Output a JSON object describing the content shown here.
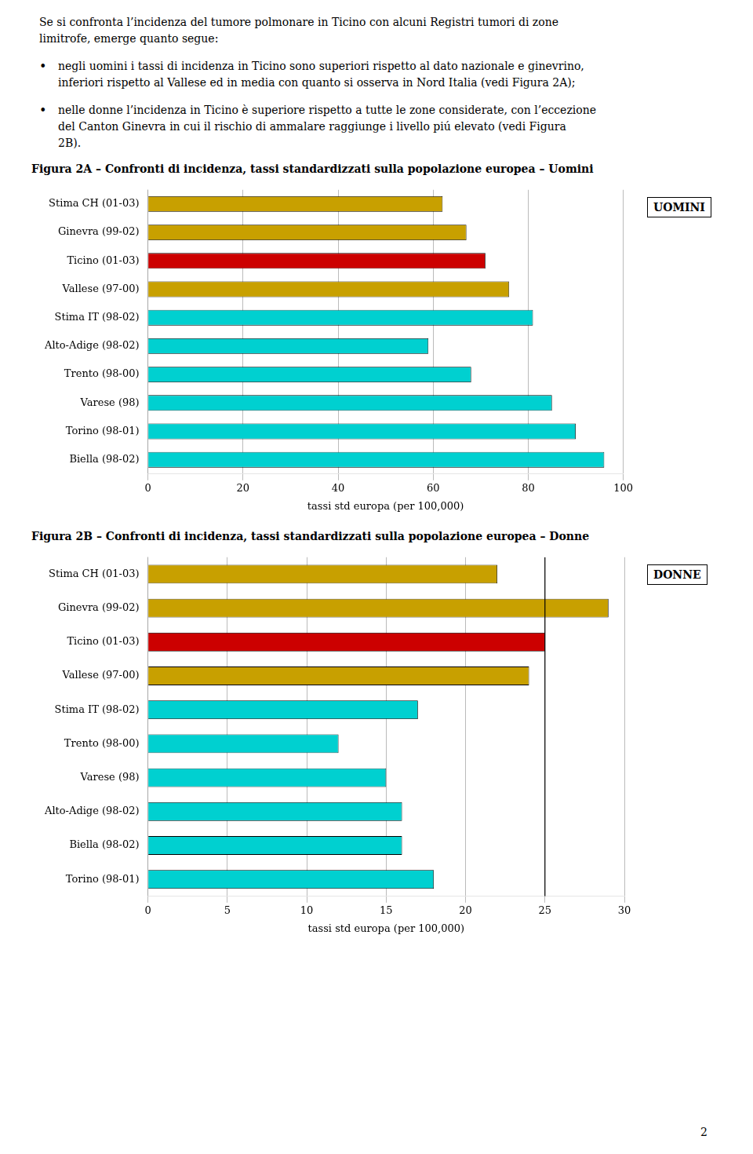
{
  "text": [
    {
      "lines": [
        "Se si confronta l’incidenza del tumore polmonare in Ticino con alcuni Registri tumori di zone",
        "limitrofe, emerge quanto segue:"
      ]
    },
    {
      "bullet": "•",
      "lines": [
        "negli uomini i tassi di incidenza in Ticino sono superiori rispetto al dato nazionale e ginevrino,",
        "inferiori rispetto al Vallese ed in media con quanto si osserva in Nord Italia (vedi Figura 2A);"
      ]
    },
    {
      "bullet": "•",
      "lines": [
        "nelle donne l’incidenza in Ticino è superiore rispetto a tutte le zone considerate, con l’eccezione",
        "del Canton Ginevra in cui il rischio di ammalare raggiunge i livello piú elevato (vedi Figura",
        "2B)."
      ]
    }
  ],
  "page_number": "2",
  "chart_data": [
    {
      "type": "bar",
      "orientation": "horizontal",
      "title": "Figura 2A – Confronti di incidenza, tassi standardizzati sulla popolazione europea – Uomini",
      "xlabel": "tassi std europa (per 100,000)",
      "annotations": [
        "UOMINI"
      ],
      "categories": [
        "Stima CH (01-03)",
        "Ginevra (99-02)",
        "Ticino (01-03)",
        "Vallese (97-00)",
        "Stima IT (98-02)",
        "Alto-Adige (98-02)",
        "Trento (98-00)",
        "Varese (98)",
        "Torino (98-01)",
        "Biella (98-02)"
      ],
      "values": [
        62,
        67,
        71,
        76,
        81,
        59,
        68,
        85,
        90,
        96
      ],
      "colors": [
        "#c8a000",
        "#c8a000",
        "#cc0000",
        "#c8a000",
        "#00d0d0",
        "#00d0d0",
        "#00d0d0",
        "#00d0d0",
        "#00d0d0",
        "#00d0d0"
      ],
      "xlim": [
        0,
        100
      ],
      "xticks": [
        0,
        20,
        40,
        60,
        80,
        100
      ],
      "grid": true
    },
    {
      "type": "bar",
      "orientation": "horizontal",
      "title": "Figura 2B – Confronti di incidenza, tassi standardizzati sulla popolazione europea – Donne",
      "xlabel": "tassi std europa (per 100,000)",
      "annotations": [
        "DONNE"
      ],
      "vlines": [
        25
      ],
      "categories": [
        "Stima CH (01-03)",
        "Ginevra (99-02)",
        "Ticino (01-03)",
        "Vallese (97-00)",
        "Stima IT (98-02)",
        "Trento (98-00)",
        "Varese (98)",
        "Alto-Adige (98-02)",
        "Biella (98-02)",
        "Torino (98-01)"
      ],
      "values": [
        22,
        29,
        25,
        24,
        17,
        12,
        15,
        16,
        16,
        18
      ],
      "colors": [
        "#c8a000",
        "#c8a000",
        "#cc0000",
        "#c8a000",
        "#00d0d0",
        "#00d0d0",
        "#00d0d0",
        "#00d0d0",
        "#00d0d0",
        "#00d0d0"
      ],
      "xlim": [
        0,
        30
      ],
      "xticks": [
        0,
        5,
        10,
        15,
        20,
        25,
        30
      ],
      "grid": true
    }
  ]
}
